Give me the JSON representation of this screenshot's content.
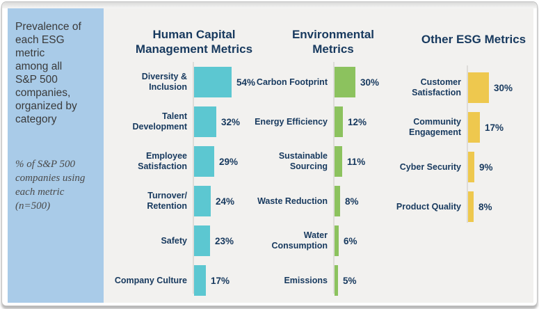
{
  "colors": {
    "navy": "#17395e",
    "sidebar_bg": "#a9cbe8",
    "chart_bg": "#f2f1ef",
    "axis_line": "#dedcd9",
    "text_dark": "#3a3a3a"
  },
  "sidebar": {
    "primary_text": "Prevalence of\neach ESG metric\namong all\nS&P 500\ncompanies,\norganized by\ncategory",
    "secondary_text": "% of S&P 500\ncompanies using\neach metric\n(n=500)"
  },
  "chart_data": [
    {
      "type": "bar",
      "orientation": "horizontal",
      "title": "Human Capital\nManagement Metrics",
      "bar_color": "#5cc7d1",
      "unit": "%",
      "xlim": [
        0,
        60
      ],
      "categories": [
        "Diversity & Inclusion",
        "Talent Development",
        "Employee Satisfaction",
        "Turnover/Retention",
        "Safety",
        "Company Culture"
      ],
      "categories_display": [
        "Diversity &\nInclusion",
        "Talent\nDevelopment",
        "Employee\nSatisfaction",
        "Turnover/\nRetention",
        "Safety",
        "Company Culture"
      ],
      "values": [
        54,
        32,
        29,
        24,
        23,
        17
      ],
      "value_labels": [
        "54%",
        "32%",
        "29%",
        "24%",
        "23%",
        "17%"
      ]
    },
    {
      "type": "bar",
      "orientation": "horizontal",
      "title": "Environmental\nMetrics",
      "bar_color": "#8cc25e",
      "unit": "%",
      "xlim": [
        0,
        60
      ],
      "categories": [
        "Carbon Footprint",
        "Energy Efficiency",
        "Sustainable Sourcing",
        "Waste Reduction",
        "Water Consumption",
        "Emissions"
      ],
      "categories_display": [
        "Carbon Footprint",
        "Energy Efficiency",
        "Sustainable\nSourcing",
        "Waste Reduction",
        "Water\nConsumption",
        "Emissions"
      ],
      "values": [
        30,
        12,
        11,
        8,
        6,
        5
      ],
      "value_labels": [
        "30%",
        "12%",
        "11%",
        "8%",
        "6%",
        "5%"
      ]
    },
    {
      "type": "bar",
      "orientation": "horizontal",
      "title": "Other ESG Metrics",
      "bar_color": "#eec84e",
      "unit": "%",
      "xlim": [
        0,
        60
      ],
      "categories": [
        "Customer Satisfaction",
        "Community Engagement",
        "Cyber Security",
        "Product Quality"
      ],
      "categories_display": [
        "Customer\nSatisfaction",
        "Community\nEngagement",
        "Cyber Security",
        "Product Quality"
      ],
      "values": [
        30,
        17,
        9,
        8
      ],
      "value_labels": [
        "30%",
        "17%",
        "9%",
        "8%"
      ]
    }
  ]
}
